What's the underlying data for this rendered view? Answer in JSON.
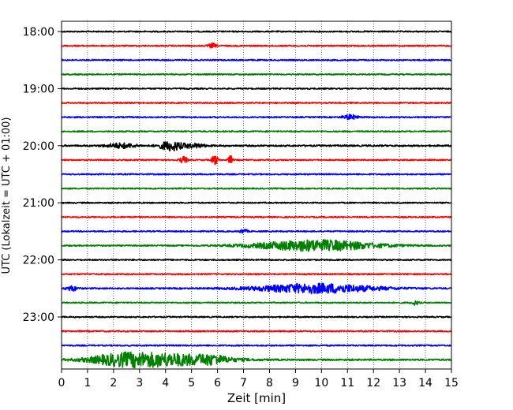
{
  "chart_data": {
    "type": "line",
    "title": "",
    "xlabel": "Zeit  [min]",
    "ylabel": "UTC (Lokalzeit = UTC + 01:00)",
    "xlim": [
      0,
      15
    ],
    "x_ticks": [
      "0",
      "1",
      "2",
      "3",
      "4",
      "5",
      "6",
      "7",
      "8",
      "9",
      "10",
      "11",
      "12",
      "13",
      "14",
      "15"
    ],
    "y_ticks": [
      {
        "label": "18:00",
        "trace": 0
      },
      {
        "label": "19:00",
        "trace": 4
      },
      {
        "label": "20:00",
        "trace": 8
      },
      {
        "label": "21:00",
        "trace": 12
      },
      {
        "label": "22:00",
        "trace": 16
      },
      {
        "label": "23:00",
        "trace": 20
      }
    ],
    "grid": "vertical dotted",
    "color_cycle": [
      "#000000",
      "#ff0000",
      "#0000ff",
      "#008000"
    ],
    "trace_interval_minutes": 15,
    "traces": [
      {
        "start": "18:00",
        "color": "#000000",
        "noise": 0.8,
        "events": []
      },
      {
        "start": "18:15",
        "color": "#ff0000",
        "noise": 0.8,
        "events": [
          {
            "t": 5.8,
            "amp": 3,
            "dur": 0.1
          }
        ]
      },
      {
        "start": "18:30",
        "color": "#0000ff",
        "noise": 0.8,
        "events": []
      },
      {
        "start": "18:45",
        "color": "#008000",
        "noise": 0.8,
        "events": []
      },
      {
        "start": "19:00",
        "color": "#000000",
        "noise": 0.8,
        "events": []
      },
      {
        "start": "19:15",
        "color": "#ff0000",
        "noise": 0.8,
        "events": []
      },
      {
        "start": "19:30",
        "color": "#0000ff",
        "noise": 0.8,
        "events": [
          {
            "t": 11.1,
            "amp": 3,
            "dur": 0.2
          }
        ]
      },
      {
        "start": "19:45",
        "color": "#008000",
        "noise": 0.8,
        "events": []
      },
      {
        "start": "20:00",
        "color": "#000000",
        "noise": 1.0,
        "events": [
          {
            "t": 2.3,
            "amp": 3,
            "dur": 0.4
          },
          {
            "t": 4.2,
            "amp": 6,
            "dur": 0.3
          },
          {
            "t": 5.1,
            "amp": 2.5,
            "dur": 0.3
          }
        ]
      },
      {
        "start": "20:15",
        "color": "#ff0000",
        "noise": 0.8,
        "events": [
          {
            "t": 4.7,
            "amp": 4,
            "dur": 0.1
          },
          {
            "t": 5.9,
            "amp": 6,
            "dur": 0.08
          },
          {
            "t": 6.5,
            "amp": 5,
            "dur": 0.06
          }
        ]
      },
      {
        "start": "20:30",
        "color": "#0000ff",
        "noise": 0.8,
        "events": []
      },
      {
        "start": "20:45",
        "color": "#008000",
        "noise": 0.8,
        "events": []
      },
      {
        "start": "21:00",
        "color": "#000000",
        "noise": 0.8,
        "events": []
      },
      {
        "start": "21:15",
        "color": "#ff0000",
        "noise": 0.8,
        "events": []
      },
      {
        "start": "21:30",
        "color": "#0000ff",
        "noise": 0.8,
        "events": [
          {
            "t": 7.0,
            "amp": 2.5,
            "dur": 0.1
          }
        ]
      },
      {
        "start": "21:45",
        "color": "#008000",
        "noise": 0.8,
        "events": [
          {
            "t": 9.8,
            "amp": 7,
            "dur": 1.6
          }
        ]
      },
      {
        "start": "22:00",
        "color": "#000000",
        "noise": 0.8,
        "events": []
      },
      {
        "start": "22:15",
        "color": "#ff0000",
        "noise": 0.8,
        "events": []
      },
      {
        "start": "22:30",
        "color": "#0000ff",
        "noise": 0.9,
        "events": [
          {
            "t": 0.4,
            "amp": 3,
            "dur": 0.15
          },
          {
            "t": 9.8,
            "amp": 6,
            "dur": 1.6
          }
        ]
      },
      {
        "start": "22:45",
        "color": "#008000",
        "noise": 0.8,
        "events": [
          {
            "t": 13.6,
            "amp": 2.5,
            "dur": 0.1
          }
        ]
      },
      {
        "start": "23:00",
        "color": "#000000",
        "noise": 0.8,
        "events": []
      },
      {
        "start": "23:15",
        "color": "#ff0000",
        "noise": 0.8,
        "events": []
      },
      {
        "start": "23:30",
        "color": "#0000ff",
        "noise": 0.8,
        "events": []
      },
      {
        "start": "23:45",
        "color": "#008000",
        "noise": 1.0,
        "events": [
          {
            "t": 2.2,
            "amp": 4,
            "dur": 0.8
          },
          {
            "t": 3.9,
            "amp": 8,
            "dur": 1.5
          },
          {
            "t": 5.8,
            "amp": 3,
            "dur": 0.4
          }
        ]
      }
    ]
  }
}
